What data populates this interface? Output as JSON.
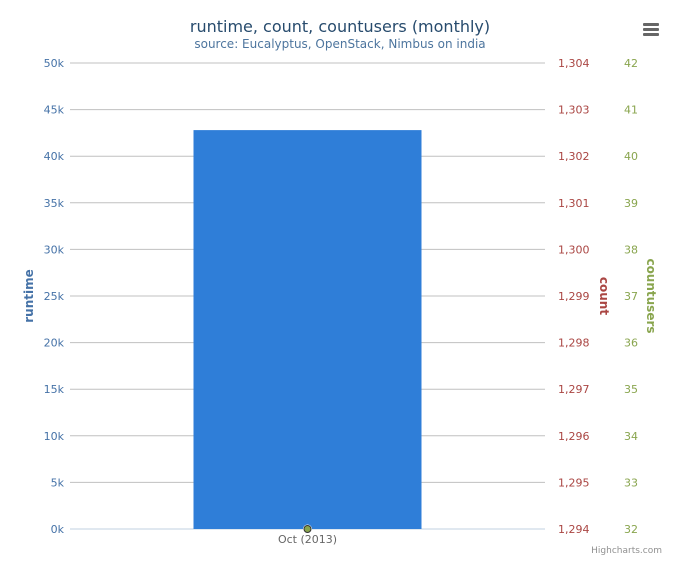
{
  "title": "runtime, count, countusers (monthly)",
  "subtitle": "source: Eucalyptus, OpenStack, Nimbus on india",
  "credits": "Highcharts.com",
  "menu_icon": "hamburger-menu-icon",
  "colors": {
    "bar": "#2f7ed8",
    "runtime_axis": "#4572a7",
    "count_axis": "#aa4643",
    "countusers_axis": "#89a54e",
    "grid": "#c0c0c0"
  },
  "chart_data": {
    "type": "bar",
    "categories": [
      "Oct (2013)"
    ],
    "series": [
      {
        "name": "runtime",
        "type": "bar",
        "axis": "runtime",
        "values": [
          42800
        ]
      },
      {
        "name": "count",
        "type": "line",
        "axis": "count",
        "values": [
          1294
        ]
      },
      {
        "name": "countusers",
        "type": "line",
        "axis": "countusers",
        "values": [
          32
        ]
      }
    ],
    "axes": {
      "runtime": {
        "label": "runtime",
        "position": "left",
        "ylim": [
          0,
          50000
        ],
        "ticks": [
          "0k",
          "5k",
          "10k",
          "15k",
          "20k",
          "25k",
          "30k",
          "35k",
          "40k",
          "45k",
          "50k"
        ]
      },
      "count": {
        "label": "count",
        "position": "right",
        "ylim": [
          1294,
          1304
        ],
        "ticks": [
          "1,294",
          "1,295",
          "1,296",
          "1,297",
          "1,298",
          "1,299",
          "1,300",
          "1,301",
          "1,302",
          "1,303",
          "1,304"
        ]
      },
      "countusers": {
        "label": "countusers",
        "position": "right",
        "ylim": [
          32,
          42
        ],
        "ticks": [
          "32",
          "33",
          "34",
          "35",
          "36",
          "37",
          "38",
          "39",
          "40",
          "41",
          "42"
        ]
      }
    },
    "grid": true
  }
}
